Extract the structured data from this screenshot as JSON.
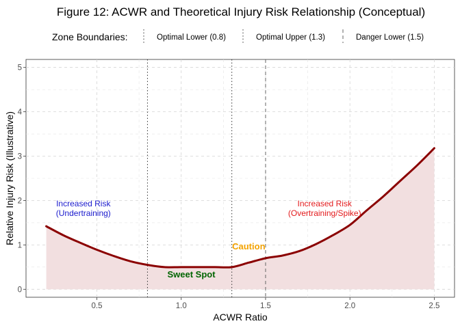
{
  "chart_data": {
    "type": "line",
    "title": "Figure 12: ACWR and Theoretical Injury Risk Relationship (Conceptual)",
    "xlabel": "ACWR Ratio",
    "ylabel": "Relative Injury Risk (Illustrative)",
    "xlim": [
      0.08,
      2.62
    ],
    "ylim": [
      -0.18,
      5.18
    ],
    "x_ticks": [
      0.5,
      1.0,
      1.5,
      2.0,
      2.5
    ],
    "x_tick_labels": [
      "0.5",
      "1.0",
      "1.5",
      "2.0",
      "2.5"
    ],
    "y_ticks": [
      0,
      1,
      2,
      3,
      4,
      5
    ],
    "y_tick_labels": [
      "0",
      "1",
      "2",
      "3",
      "4",
      "5"
    ],
    "grid": true,
    "series": [
      {
        "color": "#8b0000",
        "fill_color": "#f2dfe0",
        "x": [
          0.2,
          0.3,
          0.4,
          0.5,
          0.6,
          0.7,
          0.8,
          0.9,
          1.0,
          1.1,
          1.2,
          1.3,
          1.4,
          1.5,
          1.6,
          1.7,
          1.8,
          1.9,
          2.0,
          2.1,
          2.2,
          2.3,
          2.4,
          2.5
        ],
        "y": [
          1.42,
          1.22,
          1.05,
          0.89,
          0.75,
          0.63,
          0.55,
          0.5,
          0.5,
          0.5,
          0.5,
          0.5,
          0.6,
          0.7,
          0.76,
          0.86,
          1.02,
          1.22,
          1.45,
          1.78,
          2.1,
          2.45,
          2.8,
          3.18
        ]
      }
    ],
    "zone_boundaries": {
      "title": "Zone Boundaries:",
      "legend_position": "top",
      "lines": [
        {
          "label": "Optimal Lower (0.8)",
          "x": 0.8,
          "style": "dotted",
          "color": "#333333"
        },
        {
          "label": "Optimal Upper (1.3)",
          "x": 1.3,
          "style": "dotted",
          "color": "#333333"
        },
        {
          "label": "Danger Lower (1.5)",
          "x": 1.5,
          "style": "dashed",
          "color": "#666666"
        }
      ]
    },
    "annotations": [
      {
        "lines": [
          "Increased Risk",
          "(Undertraining)"
        ],
        "x": 0.42,
        "y": 1.87,
        "color": "#1a1acd",
        "bold": false
      },
      {
        "lines": [
          "Increased Risk",
          "(Overtraining/Spike)"
        ],
        "x": 1.85,
        "y": 1.87,
        "color": "#e31a1c",
        "bold": false
      },
      {
        "lines": [
          "Caution"
        ],
        "x": 1.4,
        "y": 0.9,
        "color": "#f4a300",
        "bold": true
      },
      {
        "lines": [
          "Sweet Spot"
        ],
        "x": 1.06,
        "y": 0.27,
        "color": "#006400",
        "bold": true
      }
    ]
  }
}
